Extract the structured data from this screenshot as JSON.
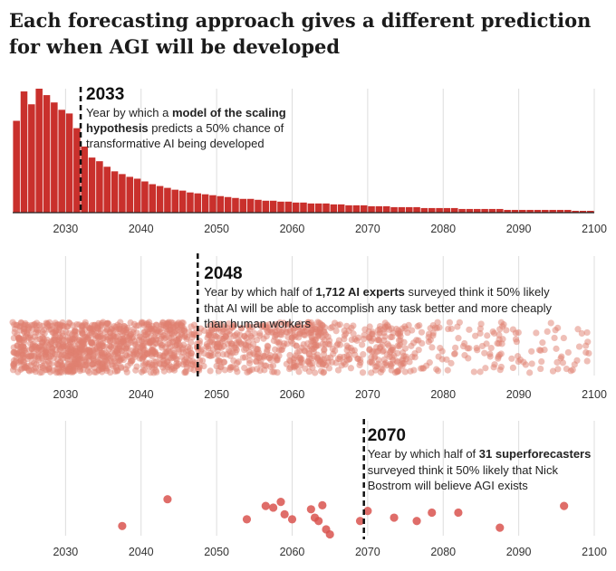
{
  "title": "Each forecasting approach gives a different prediction for when AGI will be developed",
  "colors": {
    "bar": "#c9302c",
    "dot": "#e07f70",
    "dot_strong": "#d9534f",
    "grid": "#dddddd"
  },
  "chart_data": [
    {
      "type": "bar",
      "xlim": [
        2023,
        2100
      ],
      "ticks": [
        "2030",
        "2040",
        "2050",
        "2060",
        "2070",
        "2080",
        "2090",
        "2100"
      ],
      "x": [
        2023,
        2024,
        2025,
        2026,
        2027,
        2028,
        2029,
        2030,
        2031,
        2032,
        2033,
        2034,
        2035,
        2036,
        2037,
        2038,
        2039,
        2040,
        2041,
        2042,
        2043,
        2044,
        2045,
        2046,
        2047,
        2048,
        2049,
        2050,
        2051,
        2052,
        2053,
        2054,
        2055,
        2056,
        2057,
        2058,
        2059,
        2060,
        2061,
        2062,
        2063,
        2064,
        2065,
        2066,
        2067,
        2068,
        2069,
        2070,
        2071,
        2072,
        2073,
        2074,
        2075,
        2076,
        2077,
        2078,
        2079,
        2080,
        2081,
        2082,
        2083,
        2084,
        2085,
        2086,
        2087,
        2088,
        2089,
        2090,
        2091,
        2092,
        2093,
        2094,
        2095,
        2096,
        2097,
        2098,
        2099
      ],
      "values": [
        100,
        132,
        118,
        135,
        128,
        120,
        112,
        108,
        92,
        72,
        60,
        56,
        50,
        45,
        42,
        39,
        37,
        34,
        31,
        29,
        27,
        25,
        24,
        22,
        21,
        20,
        19,
        18,
        17,
        16,
        15,
        15,
        14,
        13,
        13,
        12,
        12,
        11,
        11,
        10,
        10,
        10,
        9,
        9,
        8,
        8,
        8,
        7,
        7,
        7,
        6,
        6,
        6,
        6,
        5,
        5,
        5,
        5,
        5,
        4,
        4,
        4,
        4,
        4,
        4,
        3,
        3,
        3,
        3,
        3,
        3,
        3,
        3,
        3,
        2,
        2,
        2
      ],
      "marker_value": "2033",
      "annotation_plain_1": "Year by which a ",
      "annotation_bold_1": "model of the scaling",
      "annotation_bold_2": "hypothesis",
      "annotation_plain_2": " predicts a 50% chance of",
      "annotation_line_3": "transformative AI being developed"
    },
    {
      "type": "scatter",
      "xlim": [
        2023,
        2100
      ],
      "ticks": [
        "2030",
        "2040",
        "2050",
        "2060",
        "2070",
        "2080",
        "2090",
        "2100"
      ],
      "respondents": 1712,
      "density": [
        [
          2023,
          2030,
          1.0
        ],
        [
          2030,
          2035,
          1.3
        ],
        [
          2035,
          2040,
          0.85
        ],
        [
          2040,
          2045,
          1.0
        ],
        [
          2045,
          2050,
          0.55
        ],
        [
          2050,
          2055,
          0.55
        ],
        [
          2055,
          2060,
          0.5
        ],
        [
          2060,
          2065,
          0.7
        ],
        [
          2065,
          2070,
          0.3
        ],
        [
          2070,
          2075,
          0.55
        ],
        [
          2075,
          2080,
          0.22
        ],
        [
          2080,
          2090,
          0.16
        ],
        [
          2090,
          2100,
          0.1
        ]
      ],
      "marker_value": "2048",
      "annotation_plain_1": "Year by which half of ",
      "annotation_bold_1": "1,712 AI experts",
      "annotation_plain_2": " surveyed think it 50% likely",
      "annotation_line_2": "that AI will be able  to accomplish any task better and more cheaply",
      "annotation_line_3": "than human workers"
    },
    {
      "type": "scatter",
      "xlim": [
        2023,
        2100
      ],
      "ticks": [
        "2030",
        "2040",
        "2050",
        "2060",
        "2070",
        "2080",
        "2090",
        "2100"
      ],
      "points": [
        {
          "x": 2037.5,
          "y": 0.1
        },
        {
          "x": 2043.5,
          "y": 0.9
        },
        {
          "x": 2054,
          "y": 0.3
        },
        {
          "x": 2056.5,
          "y": 0.7
        },
        {
          "x": 2057.5,
          "y": 0.65
        },
        {
          "x": 2058.5,
          "y": 0.82
        },
        {
          "x": 2059,
          "y": 0.45
        },
        {
          "x": 2060,
          "y": 0.3
        },
        {
          "x": 2062.5,
          "y": 0.6
        },
        {
          "x": 2063,
          "y": 0.35
        },
        {
          "x": 2063.5,
          "y": 0.25
        },
        {
          "x": 2064,
          "y": 0.72
        },
        {
          "x": 2064.5,
          "y": 0.0
        },
        {
          "x": 2065,
          "y": -0.15
        },
        {
          "x": 2069,
          "y": 0.25
        },
        {
          "x": 2070,
          "y": 0.55
        },
        {
          "x": 2073.5,
          "y": 0.35
        },
        {
          "x": 2076.5,
          "y": 0.25
        },
        {
          "x": 2078.5,
          "y": 0.5
        },
        {
          "x": 2082,
          "y": 0.5
        },
        {
          "x": 2087.5,
          "y": 0.05
        },
        {
          "x": 2096,
          "y": 0.7
        }
      ],
      "marker_value": "2070",
      "annotation_plain_1": "Year by which half of ",
      "annotation_bold_1": "31 superforecasters",
      "annotation_line_2": "surveyed think it 50% likely that Nick",
      "annotation_line_3": "Bostrom will believe AGI exists"
    }
  ]
}
